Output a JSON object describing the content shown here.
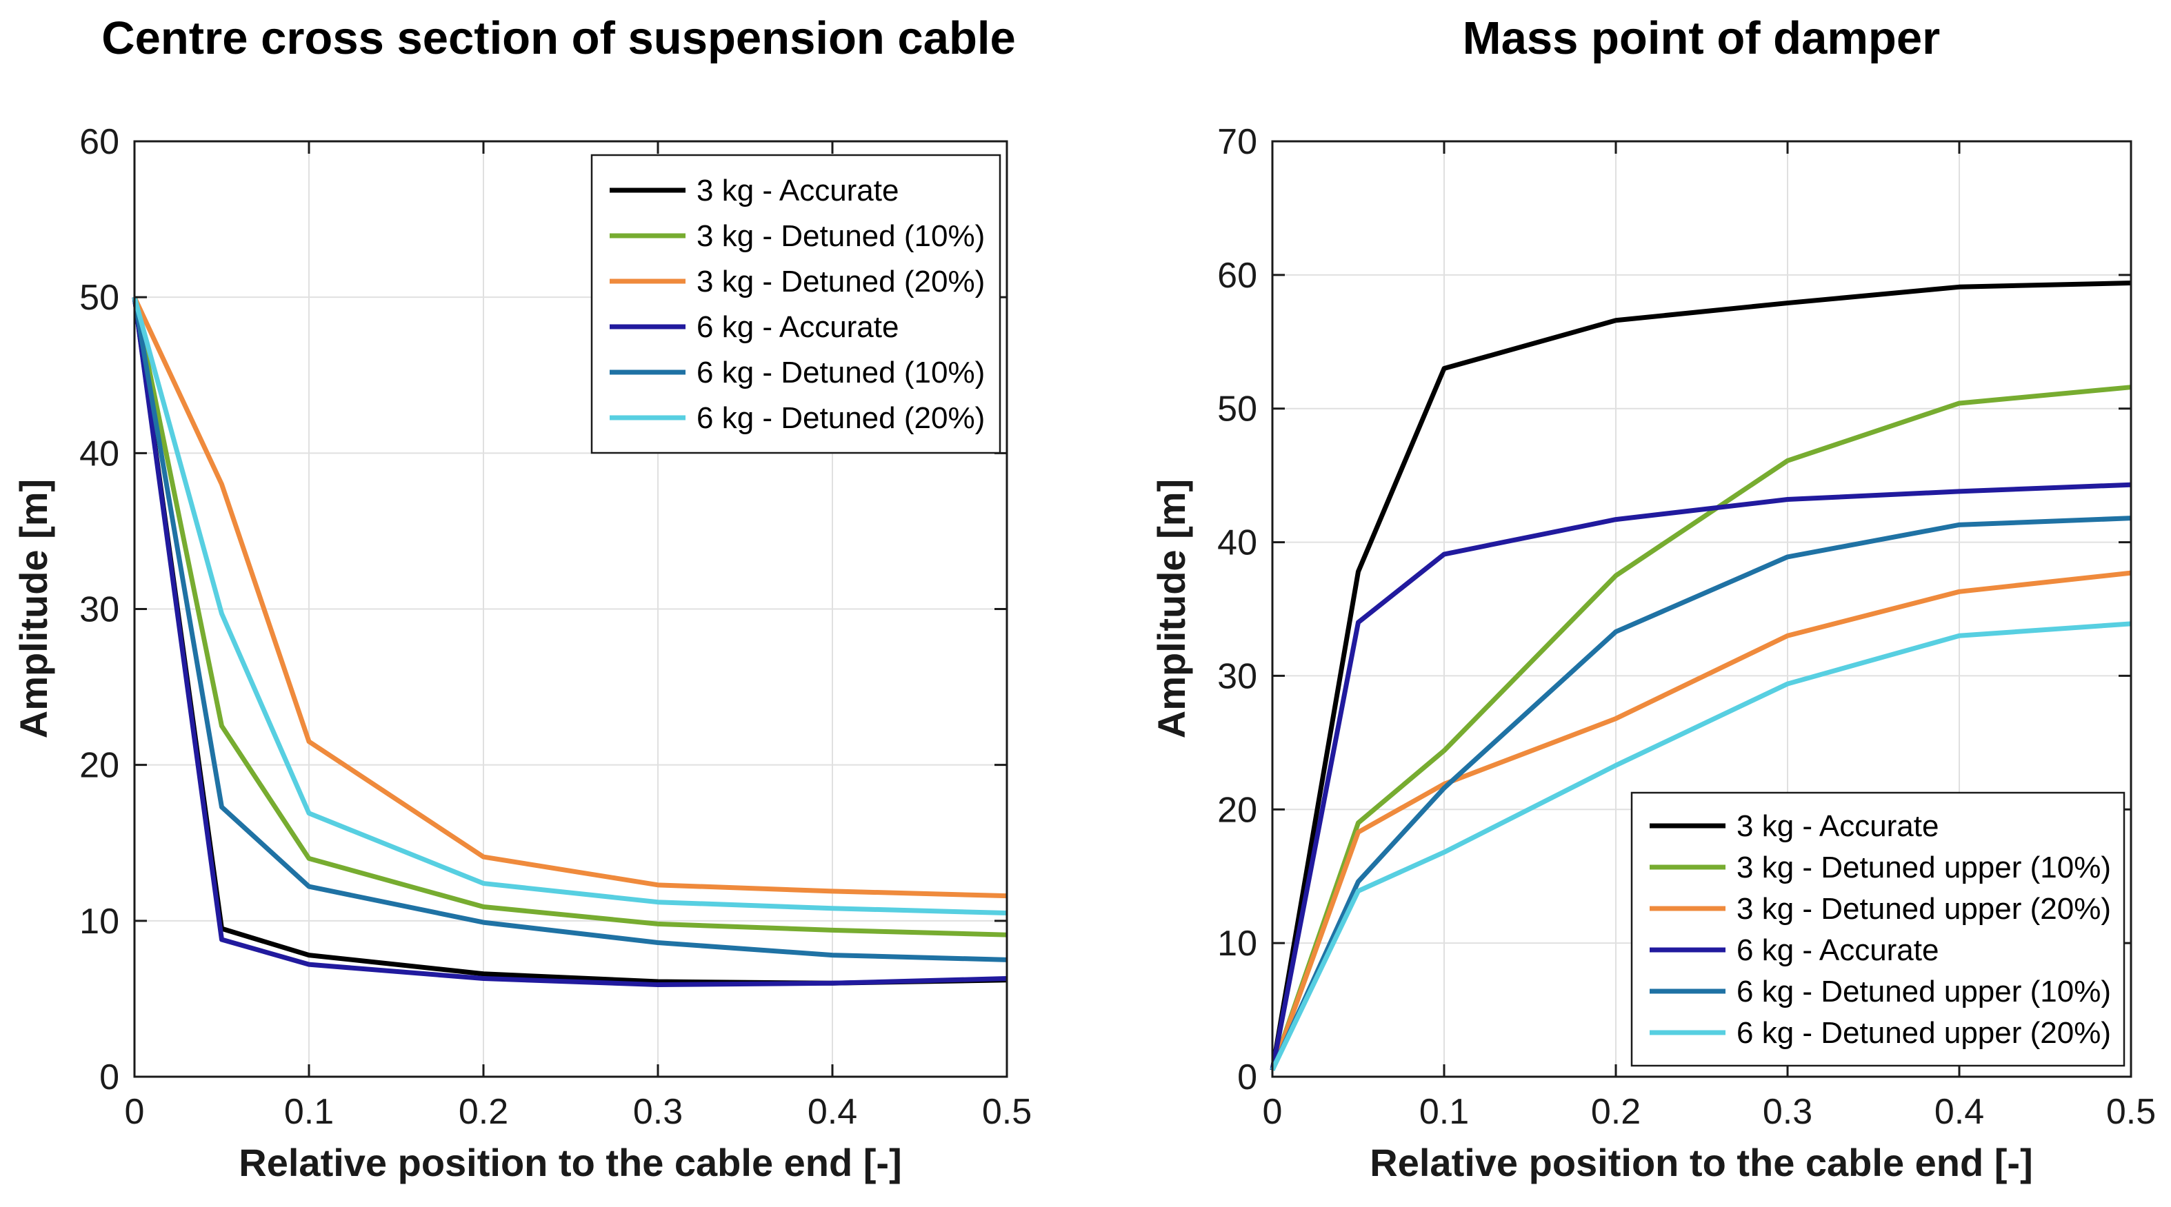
{
  "figure": {
    "background_color": "#ffffff",
    "axis_color": "#1a1a1a",
    "grid_color": "#e0e0e0"
  },
  "chart_data": [
    {
      "type": "line",
      "title": "Centre cross section of suspension cable",
      "xlabel": "Relative position to the cable end [-]",
      "ylabel": "Amplitude [m]",
      "xlim": [
        0,
        0.5
      ],
      "ylim": [
        0,
        60
      ],
      "xticks": [
        0,
        0.1,
        0.2,
        0.3,
        0.4,
        0.5
      ],
      "xtick_labels": [
        "0",
        "0.1",
        "0.2",
        "0.3",
        "0.4",
        "0.5"
      ],
      "yticks": [
        0,
        10,
        20,
        30,
        40,
        50,
        60
      ],
      "ytick_labels": [
        "0",
        "10",
        "20",
        "30",
        "40",
        "50",
        "60"
      ],
      "grid": true,
      "legend_position": "top-right",
      "x": [
        0,
        0.05,
        0.1,
        0.2,
        0.3,
        0.4,
        0.5
      ],
      "series": [
        {
          "name": "3 kg - Accurate",
          "color": "#000000",
          "values": [
            50,
            9.5,
            7.8,
            6.6,
            6.1,
            6.0,
            6.2
          ]
        },
        {
          "name": "3 kg - Detuned (10%)",
          "color": "#77ac30",
          "values": [
            50,
            22.5,
            14.0,
            10.9,
            9.8,
            9.4,
            9.1
          ]
        },
        {
          "name": "3 kg - Detuned (20%)",
          "color": "#ef8a3c",
          "values": [
            50,
            38.0,
            21.5,
            14.1,
            12.3,
            11.9,
            11.6
          ]
        },
        {
          "name": "6 kg - Accurate",
          "color": "#211a9e",
          "values": [
            50,
            8.8,
            7.2,
            6.3,
            5.9,
            6.0,
            6.3
          ]
        },
        {
          "name": "6 kg - Detuned (10%)",
          "color": "#1f72a4",
          "values": [
            50,
            17.3,
            12.2,
            9.9,
            8.6,
            7.8,
            7.5
          ]
        },
        {
          "name": "6 kg - Detuned (20%)",
          "color": "#57cfe1",
          "values": [
            50,
            29.7,
            16.9,
            12.4,
            11.2,
            10.8,
            10.5
          ]
        }
      ]
    },
    {
      "type": "line",
      "title": "Mass point of damper",
      "xlabel": "Relative position to the cable end [-]",
      "ylabel": "Amplitude [m]",
      "xlim": [
        0,
        0.5
      ],
      "ylim": [
        0,
        70
      ],
      "xticks": [
        0,
        0.1,
        0.2,
        0.3,
        0.4,
        0.5
      ],
      "xtick_labels": [
        "0",
        "0.1",
        "0.2",
        "0.3",
        "0.4",
        "0.5"
      ],
      "yticks": [
        0,
        10,
        20,
        30,
        40,
        50,
        60,
        70
      ],
      "ytick_labels": [
        "0",
        "10",
        "20",
        "30",
        "40",
        "50",
        "60",
        "70"
      ],
      "grid": true,
      "legend_position": "bottom-right",
      "x": [
        0,
        0.05,
        0.1,
        0.2,
        0.3,
        0.4,
        0.5
      ],
      "series": [
        {
          "name": "3 kg - Accurate",
          "color": "#000000",
          "values": [
            0.5,
            37.8,
            53.0,
            56.6,
            57.9,
            59.1,
            59.4
          ]
        },
        {
          "name": "3 kg - Detuned upper (10%)",
          "color": "#77ac30",
          "values": [
            0.5,
            19.0,
            24.4,
            37.5,
            46.1,
            50.4,
            51.6
          ]
        },
        {
          "name": "3 kg - Detuned upper (20%)",
          "color": "#ef8a3c",
          "values": [
            0.5,
            18.3,
            21.9,
            26.8,
            33.0,
            36.3,
            37.7
          ]
        },
        {
          "name": "6 kg - Accurate",
          "color": "#211a9e",
          "values": [
            0.5,
            34.0,
            39.1,
            41.7,
            43.2,
            43.8,
            44.3
          ]
        },
        {
          "name": "6 kg - Detuned upper (10%)",
          "color": "#1f72a4",
          "values": [
            0.5,
            14.6,
            21.6,
            33.3,
            38.9,
            41.3,
            41.8
          ]
        },
        {
          "name": "6 kg - Detuned upper (20%)",
          "color": "#57cfe1",
          "values": [
            0.5,
            13.9,
            16.8,
            23.3,
            29.4,
            33.0,
            33.9
          ]
        }
      ]
    }
  ]
}
